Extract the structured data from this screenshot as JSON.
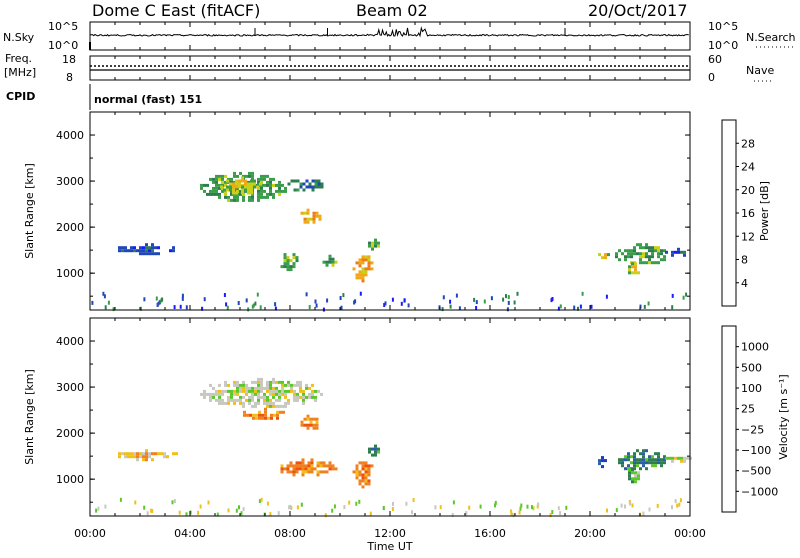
{
  "header": {
    "station": "Dome C East (fitACF)",
    "beam": "Beam 02",
    "date": "20/Oct/2017"
  },
  "nsky_panel": {
    "left_label": "N.Sky",
    "left_top": "10^5",
    "left_bottom": "10^0",
    "right_top": "10^5",
    "right_bottom": "10^0",
    "right_label": "N.Search"
  },
  "freq_panel": {
    "left_label_line1": "Freq.",
    "left_label_line2": "[MHz]",
    "left_top": "18",
    "left_bottom": "8",
    "right_top": "60",
    "right_bottom": "0",
    "right_label": "Nave"
  },
  "cpid": {
    "label": "CPID",
    "value": "normal (fast) 151"
  },
  "chart_data": [
    {
      "type": "heatmap",
      "name": "Power",
      "ylabel": "Slant Range [km]",
      "ylim": [
        200,
        4500
      ],
      "yticks": [
        "1000",
        "2000",
        "3000",
        "4000"
      ],
      "colorbar": {
        "label": "Power [dB]",
        "ticks": [
          "4",
          "8",
          "12",
          "16",
          "20",
          "24",
          "28"
        ],
        "colors": [
          "#1a1aff",
          "#1f47b8",
          "#2e7d4f",
          "#3a9d4a",
          "#c8d018",
          "#f0a818",
          "#f07a18",
          "#e02020"
        ]
      },
      "regions": [
        {
          "t0": 1.0,
          "t1": 3.5,
          "r0": 1450,
          "r1": 1650,
          "level": 1
        },
        {
          "t0": 4.4,
          "t1": 7.8,
          "r0": 2600,
          "r1": 3200,
          "level": 3
        },
        {
          "t0": 5.2,
          "t1": 6.8,
          "r0": 2750,
          "r1": 3100,
          "level": 4
        },
        {
          "t0": 7.9,
          "t1": 9.3,
          "r0": 2800,
          "r1": 3100,
          "level": 2
        },
        {
          "t0": 8.3,
          "t1": 9.2,
          "r0": 2100,
          "r1": 2400,
          "level": 5
        },
        {
          "t0": 7.5,
          "t1": 8.3,
          "r0": 1100,
          "r1": 1500,
          "level": 3
        },
        {
          "t0": 9.3,
          "t1": 9.8,
          "r0": 1150,
          "r1": 1400,
          "level": 3
        },
        {
          "t0": 10.5,
          "t1": 11.3,
          "r0": 850,
          "r1": 1450,
          "level": 5
        },
        {
          "t0": 11.0,
          "t1": 11.6,
          "r0": 1550,
          "r1": 1750,
          "level": 3
        },
        {
          "t0": 20.2,
          "t1": 20.7,
          "r0": 1300,
          "r1": 1500,
          "level": 4
        },
        {
          "t0": 21.0,
          "t1": 23.0,
          "r0": 1200,
          "r1": 1650,
          "level": 3
        },
        {
          "t0": 21.4,
          "t1": 21.9,
          "r0": 900,
          "r1": 1300,
          "level": 4
        },
        {
          "t0": 23.0,
          "t1": 24.0,
          "r0": 1400,
          "r1": 1550,
          "level": 1
        }
      ]
    },
    {
      "type": "heatmap",
      "name": "Velocity",
      "ylabel": "Slant Range [km]",
      "ylim": [
        200,
        4500
      ],
      "yticks": [
        "1000",
        "2000",
        "3000",
        "4000"
      ],
      "colorbar": {
        "label": "Velocity  [m s⁻¹]",
        "ticks": [
          "1000",
          "500",
          "100",
          "25",
          "−25",
          "−100",
          "−500",
          "−1000"
        ],
        "colors": [
          "#1a3cc8",
          "#2a5fa8",
          "#2e7d4f",
          "#5ac828",
          "#c8c8c0",
          "#f0c018",
          "#f08020",
          "#f05010",
          "#e01818"
        ]
      },
      "regions": [
        {
          "t0": 1.0,
          "t1": 3.5,
          "r0": 1450,
          "r1": 1650,
          "level": 5
        },
        {
          "t0": 4.4,
          "t1": 9.3,
          "r0": 2600,
          "r1": 3200,
          "level": 4
        },
        {
          "t0": 6.0,
          "t1": 7.8,
          "r0": 2300,
          "r1": 2550,
          "level": 6
        },
        {
          "t0": 8.3,
          "t1": 9.2,
          "r0": 2100,
          "r1": 2400,
          "level": 6
        },
        {
          "t0": 7.5,
          "t1": 9.8,
          "r0": 1100,
          "r1": 1450,
          "level": 6
        },
        {
          "t0": 10.5,
          "t1": 11.3,
          "r0": 850,
          "r1": 1450,
          "level": 6
        },
        {
          "t0": 11.0,
          "t1": 11.6,
          "r0": 1550,
          "r1": 1750,
          "level": 2
        },
        {
          "t0": 20.2,
          "t1": 20.7,
          "r0": 1300,
          "r1": 1500,
          "level": 0
        },
        {
          "t0": 21.0,
          "t1": 23.0,
          "r0": 1200,
          "r1": 1650,
          "level": 2
        },
        {
          "t0": 21.4,
          "t1": 21.9,
          "r0": 900,
          "r1": 1300,
          "level": 3
        },
        {
          "t0": 23.0,
          "t1": 24.0,
          "r0": 1400,
          "r1": 1550,
          "level": 4
        }
      ]
    }
  ],
  "time_axis": {
    "ticks": [
      "00:00",
      "04:00",
      "08:00",
      "12:00",
      "16:00",
      "20:00",
      "00:00"
    ],
    "label": "Time UT",
    "range_hours": [
      0,
      24
    ]
  }
}
